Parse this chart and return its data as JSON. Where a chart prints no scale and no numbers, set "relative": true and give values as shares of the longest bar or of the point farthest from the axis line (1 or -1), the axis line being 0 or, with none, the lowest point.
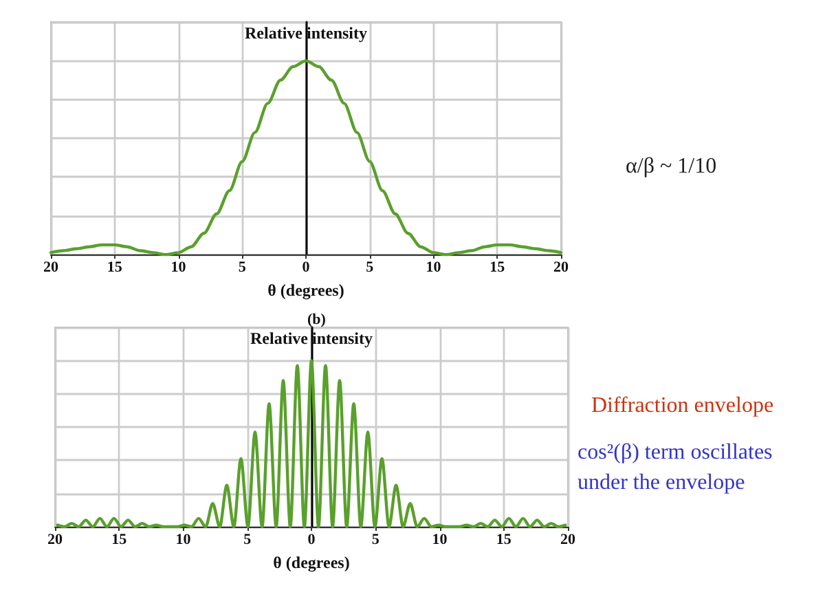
{
  "chart_data": [
    {
      "type": "line",
      "relative": true,
      "ylabel": "Relative intensity",
      "xlabel": "θ (degrees)",
      "grid": true,
      "marker": "none",
      "line_style": "solid",
      "xlim": [
        -20,
        20
      ],
      "xticks": [
        {
          "value": -20,
          "label": "20"
        },
        {
          "value": -15,
          "label": "15"
        },
        {
          "value": -10,
          "label": "10"
        },
        {
          "value": -5,
          "label": "5"
        },
        0,
        5,
        10,
        15,
        20
      ],
      "annotations": [
        "α/β ~ 1/10"
      ],
      "series": [
        {
          "color": "#5aa02c",
          "x": [
            -20,
            -19,
            -18,
            -17,
            -16,
            -15,
            -14,
            -13,
            -12,
            -11,
            -10,
            -9,
            -8,
            -7,
            -6,
            -5,
            -4,
            -3,
            -2,
            -1,
            0,
            1,
            2,
            3,
            4,
            5,
            6,
            7,
            8,
            9,
            10,
            11,
            12,
            13,
            14,
            15,
            16,
            17,
            18,
            19,
            20
          ],
          "values": [
            0.01,
            0.02,
            0.03,
            0.04,
            0.05,
            0.05,
            0.04,
            0.02,
            0.01,
            0,
            0.01,
            0.04,
            0.11,
            0.21,
            0.33,
            0.48,
            0.63,
            0.78,
            0.9,
            0.97,
            1,
            0.97,
            0.9,
            0.78,
            0.63,
            0.48,
            0.33,
            0.21,
            0.11,
            0.04,
            0.01,
            0,
            0.01,
            0.02,
            0.04,
            0.05,
            0.05,
            0.04,
            0.03,
            0.02,
            0.01
          ]
        }
      ]
    },
    {
      "type": "line",
      "relative": true,
      "title": "(b)",
      "ylabel": "Relative intensity",
      "xlabel": "θ (degrees)",
      "grid": true,
      "marker": "none",
      "line_style": "solid",
      "xlim": [
        -20,
        20
      ],
      "xticks": [
        {
          "value": -20,
          "label": "20"
        },
        {
          "value": -15,
          "label": "15"
        },
        {
          "value": -10,
          "label": "10"
        },
        {
          "value": -5,
          "label": "5"
        },
        0,
        5,
        10,
        15,
        20
      ],
      "annotations": [
        "Diffraction envelope",
        "cos²(β) term oscillates under the envelope"
      ],
      "series": [
        {
          "color": "#5aa02c",
          "x": [
            -19.8,
            -19.25,
            -18.7,
            -18.15,
            -17.6,
            -17.05,
            -16.5,
            -15.95,
            -15.4,
            -14.85,
            -14.3,
            -13.75,
            -13.2,
            -12.65,
            -12.1,
            -11.55,
            -11,
            -10.45,
            -9.9,
            -9.35,
            -8.8,
            -8.25,
            -7.7,
            -7.15,
            -6.6,
            -6.05,
            -5.5,
            -4.95,
            -4.4,
            -3.85,
            -3.3,
            -2.75,
            -2.2,
            -1.65,
            -1.1,
            -0.55,
            0,
            0.55,
            1.1,
            1.65,
            2.2,
            2.75,
            3.3,
            3.85,
            4.4,
            4.95,
            5.5,
            6.05,
            6.6,
            7.15,
            7.7,
            8.25,
            8.8,
            9.35,
            9.9,
            10.45,
            11,
            11.55,
            12.1,
            12.65,
            13.2,
            13.75,
            14.3,
            14.85,
            15.4,
            15.95,
            16.5,
            17.05,
            17.6,
            18.15,
            18.7,
            19.25,
            19.8
          ],
          "values": [
            0.01,
            0,
            0.02,
            0,
            0.04,
            0,
            0.05,
            0,
            0.05,
            0,
            0.04,
            0,
            0.02,
            0,
            0.01,
            0,
            0,
            0,
            0.01,
            0,
            0.05,
            0,
            0.14,
            0,
            0.25,
            0,
            0.41,
            0,
            0.57,
            0,
            0.74,
            0,
            0.88,
            0,
            0.97,
            0,
            1,
            0,
            0.97,
            0,
            0.88,
            0,
            0.74,
            0,
            0.57,
            0,
            0.41,
            0,
            0.25,
            0,
            0.14,
            0,
            0.05,
            0,
            0.01,
            0,
            0,
            0,
            0.01,
            0,
            0.02,
            0,
            0.04,
            0,
            0.05,
            0,
            0.05,
            0,
            0.04,
            0,
            0.02,
            0,
            0.01
          ]
        }
      ]
    }
  ]
}
